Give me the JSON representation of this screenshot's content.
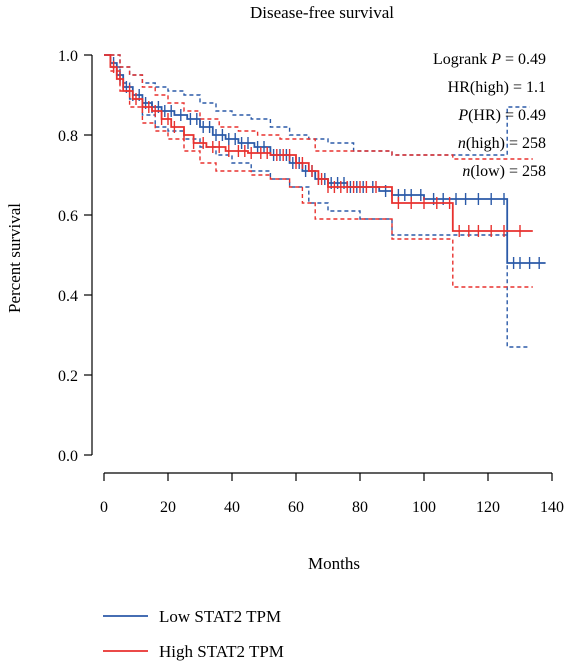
{
  "chart_data": {
    "type": "line",
    "title": "Disease-free survival",
    "xlabel": "Months",
    "ylabel": "Percent survival",
    "xlim": [
      0,
      140
    ],
    "ylim": [
      0,
      1.0
    ],
    "x_ticks": [
      "0",
      "20",
      "40",
      "60",
      "80",
      "100",
      "120",
      "140"
    ],
    "y_ticks": [
      "0.0",
      "0.2",
      "0.4",
      "0.6",
      "0.8",
      "1.0"
    ],
    "grid": false,
    "legend_position": "bottom-left",
    "stats": {
      "logrank_label": "Logrank",
      "logrank_p_symbol": "P",
      "logrank_value": "= 0.49",
      "hr_label": "HR(high) = 1.1",
      "p_hr_symbol": "P",
      "p_hr_value": "(HR) = 0.49",
      "n_high_symbol": "n",
      "n_high_value": "(high) = 258",
      "n_low_symbol": "n",
      "n_low_value": "(low) = 258"
    },
    "series": [
      {
        "name": "Low STAT2 TPM",
        "color": "#2b5aa8",
        "steps": [
          [
            0,
            1.0
          ],
          [
            2,
            0.98
          ],
          [
            4,
            0.95
          ],
          [
            6,
            0.92
          ],
          [
            9,
            0.9
          ],
          [
            12,
            0.88
          ],
          [
            15,
            0.87
          ],
          [
            18,
            0.86
          ],
          [
            22,
            0.85
          ],
          [
            26,
            0.84
          ],
          [
            30,
            0.82
          ],
          [
            34,
            0.8
          ],
          [
            38,
            0.79
          ],
          [
            42,
            0.78
          ],
          [
            47,
            0.77
          ],
          [
            52,
            0.75
          ],
          [
            58,
            0.73
          ],
          [
            62,
            0.71
          ],
          [
            66,
            0.69
          ],
          [
            70,
            0.68
          ],
          [
            76,
            0.67
          ],
          [
            86,
            0.66
          ],
          [
            90,
            0.65
          ],
          [
            100,
            0.64
          ],
          [
            126,
            0.48
          ],
          [
            138,
            0.48
          ]
        ],
        "upper": [
          [
            2,
            1.0
          ],
          [
            5,
            0.97
          ],
          [
            8,
            0.95
          ],
          [
            12,
            0.93
          ],
          [
            16,
            0.92
          ],
          [
            20,
            0.91
          ],
          [
            25,
            0.9
          ],
          [
            30,
            0.88
          ],
          [
            35,
            0.86
          ],
          [
            40,
            0.85
          ],
          [
            46,
            0.84
          ],
          [
            52,
            0.82
          ],
          [
            58,
            0.8
          ],
          [
            64,
            0.79
          ],
          [
            70,
            0.78
          ],
          [
            78,
            0.76
          ],
          [
            90,
            0.75
          ],
          [
            100,
            0.75
          ],
          [
            126,
            0.87
          ],
          [
            133,
            0.87
          ]
        ],
        "lower": [
          [
            2,
            0.97
          ],
          [
            5,
            0.93
          ],
          [
            8,
            0.89
          ],
          [
            12,
            0.85
          ],
          [
            16,
            0.82
          ],
          [
            20,
            0.81
          ],
          [
            25,
            0.79
          ],
          [
            30,
            0.77
          ],
          [
            35,
            0.75
          ],
          [
            40,
            0.73
          ],
          [
            46,
            0.71
          ],
          [
            52,
            0.69
          ],
          [
            58,
            0.67
          ],
          [
            64,
            0.63
          ],
          [
            70,
            0.61
          ],
          [
            80,
            0.59
          ],
          [
            90,
            0.55
          ],
          [
            100,
            0.55
          ],
          [
            126,
            0.27
          ],
          [
            133,
            0.27
          ]
        ],
        "censors": [
          3,
          5,
          7,
          9,
          11,
          13,
          15,
          17,
          19,
          21,
          24,
          27,
          29,
          31,
          33,
          35,
          37,
          39,
          41,
          43,
          45,
          48,
          50,
          53,
          55,
          57,
          59,
          61,
          63,
          65,
          67,
          69,
          71,
          73,
          75,
          77,
          79,
          81,
          84,
          88,
          92,
          94,
          96,
          99,
          103,
          106,
          110,
          113,
          117,
          121,
          125,
          128,
          130,
          133,
          136
        ]
      },
      {
        "name": "High STAT2 TPM",
        "color": "#e8312e",
        "steps": [
          [
            0,
            1.0
          ],
          [
            2,
            0.97
          ],
          [
            4,
            0.94
          ],
          [
            6,
            0.91
          ],
          [
            9,
            0.89
          ],
          [
            12,
            0.87
          ],
          [
            15,
            0.86
          ],
          [
            18,
            0.84
          ],
          [
            21,
            0.82
          ],
          [
            25,
            0.8
          ],
          [
            28,
            0.78
          ],
          [
            32,
            0.77
          ],
          [
            38,
            0.76
          ],
          [
            45,
            0.755
          ],
          [
            52,
            0.75
          ],
          [
            60,
            0.73
          ],
          [
            64,
            0.71
          ],
          [
            67,
            0.69
          ],
          [
            70,
            0.67
          ],
          [
            90,
            0.63
          ],
          [
            109,
            0.56
          ],
          [
            134,
            0.56
          ]
        ],
        "upper": [
          [
            2,
            1.0
          ],
          [
            5,
            0.97
          ],
          [
            8,
            0.95
          ],
          [
            12,
            0.92
          ],
          [
            16,
            0.9
          ],
          [
            20,
            0.88
          ],
          [
            25,
            0.86
          ],
          [
            30,
            0.84
          ],
          [
            36,
            0.82
          ],
          [
            42,
            0.81
          ],
          [
            48,
            0.8
          ],
          [
            55,
            0.79
          ],
          [
            62,
            0.79
          ],
          [
            66,
            0.76
          ],
          [
            90,
            0.75
          ],
          [
            109,
            0.74
          ],
          [
            134,
            0.74
          ]
        ],
        "lower": [
          [
            2,
            0.96
          ],
          [
            5,
            0.91
          ],
          [
            8,
            0.87
          ],
          [
            12,
            0.83
          ],
          [
            16,
            0.81
          ],
          [
            20,
            0.79
          ],
          [
            25,
            0.76
          ],
          [
            30,
            0.73
          ],
          [
            35,
            0.71
          ],
          [
            40,
            0.71
          ],
          [
            46,
            0.7
          ],
          [
            52,
            0.69
          ],
          [
            58,
            0.67
          ],
          [
            62,
            0.63
          ],
          [
            66,
            0.59
          ],
          [
            90,
            0.54
          ],
          [
            109,
            0.42
          ],
          [
            134,
            0.42
          ]
        ],
        "censors": [
          3,
          5,
          8,
          10,
          12,
          14,
          16,
          18,
          20,
          22,
          25,
          28,
          31,
          34,
          36,
          39,
          42,
          44,
          46,
          49,
          51,
          54,
          56,
          58,
          60,
          62,
          65,
          67,
          68,
          70,
          72,
          74,
          76,
          78,
          80,
          82,
          85,
          92,
          96,
          100,
          104,
          108,
          111,
          114,
          117,
          121,
          125,
          130
        ]
      }
    ]
  }
}
